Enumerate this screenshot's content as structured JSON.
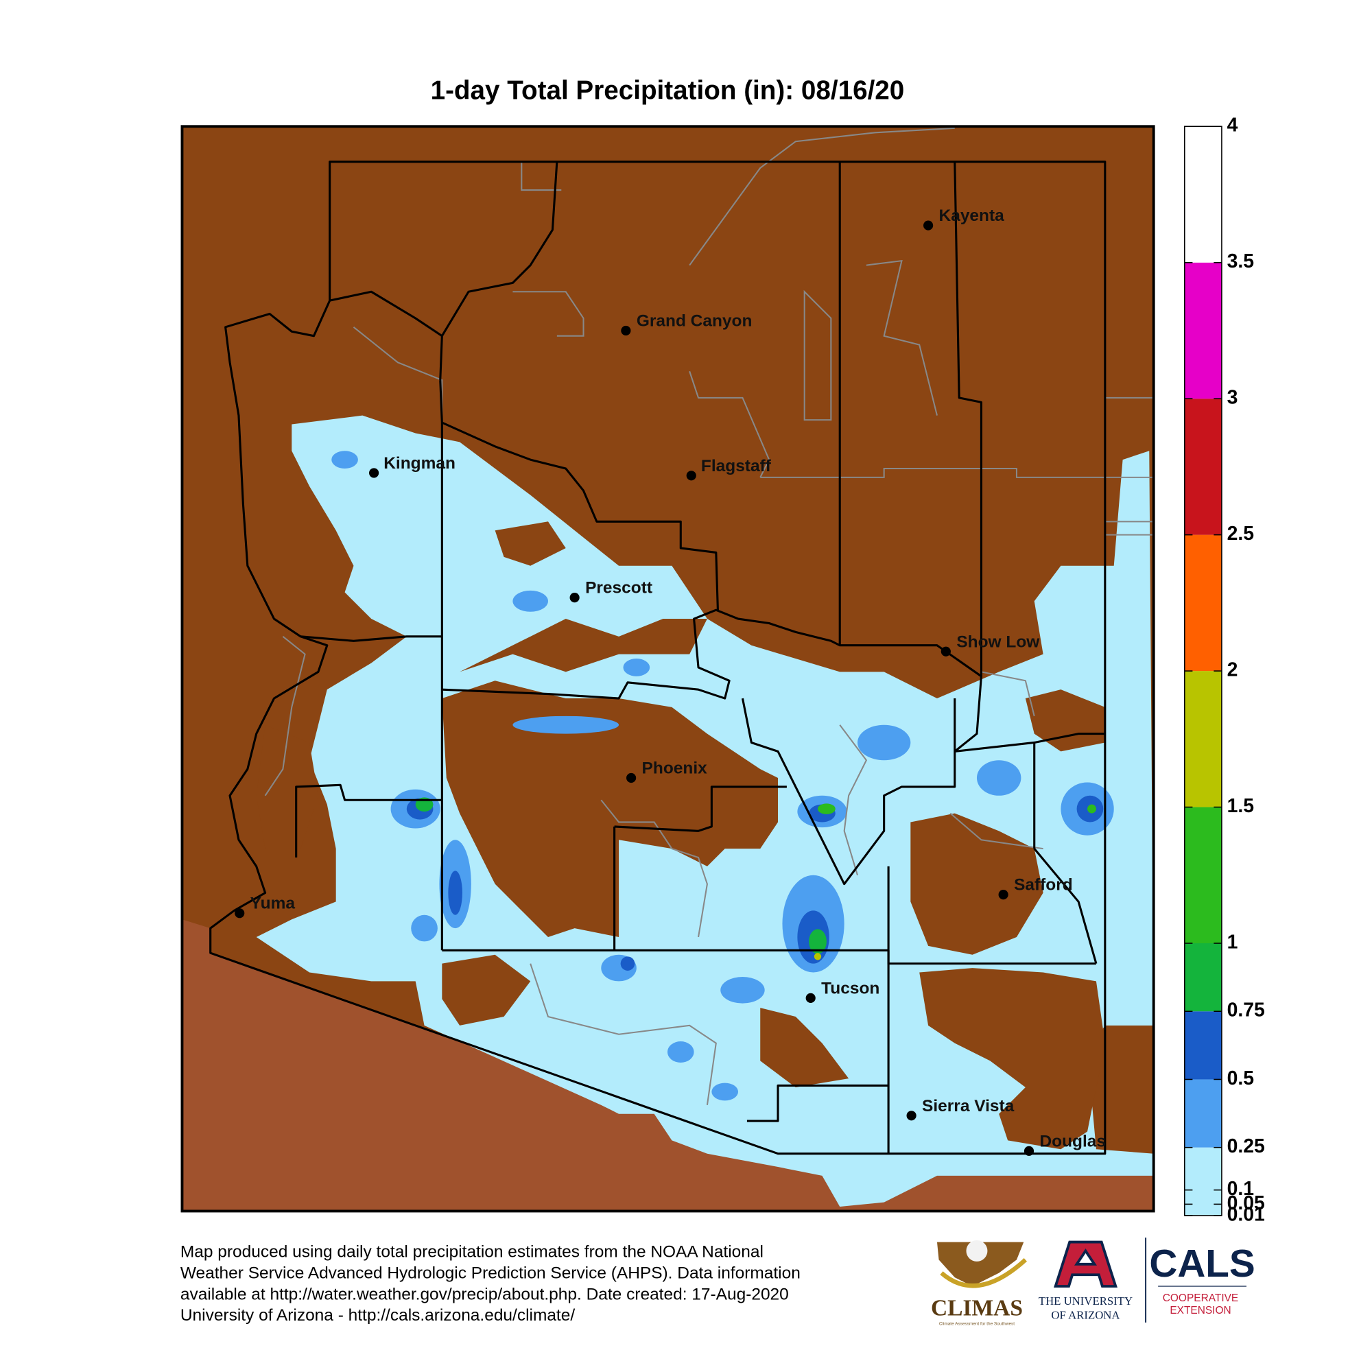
{
  "title": "1-day Total Precipitation (in): 08/16/20",
  "legend": {
    "bins": [
      0.01,
      0.25,
      0.5,
      0.75,
      1,
      1.5,
      2,
      2.5,
      3,
      3.5,
      4
    ],
    "colors": [
      "#b3ecfc",
      "#4d9ff0",
      "#1a5cc8",
      "#14b43c",
      "#2cbb1e",
      "#b8c400",
      "#ff6000",
      "#c8141c",
      "#e600c8",
      "#ffffff"
    ],
    "ticks": [
      0.01,
      0.05,
      0.1,
      0.25,
      0.5,
      0.75,
      1,
      1.5,
      2,
      2.5,
      3,
      3.5,
      4
    ]
  },
  "cities": [
    "Kayenta",
    "Grand Canyon",
    "Kingman",
    "Flagstaff",
    "Prescott",
    "Show Low",
    "Phoenix",
    "Safford",
    "Yuma",
    "Tucson",
    "Sierra Vista",
    "Douglas"
  ],
  "footer": [
    "Map produced using daily total precipitation estimates from the NOAA National",
    "Weather Service Advanced Hydrologic Prediction Service (AHPS). Data information",
    "available at http://water.weather.gov/precip/about.php. Date created: 17-Aug-2020",
    "University of Arizona - http://cals.arizona.edu/climate/"
  ],
  "logos": {
    "climas": "CLIMAS",
    "climas_tagline": "Climate Assessment for the Southwest",
    "university": [
      "THE UNIVERSITY",
      "OF ARIZONA"
    ],
    "cals": "CALS",
    "extension": [
      "COOPERATIVE",
      "EXTENSION"
    ]
  }
}
